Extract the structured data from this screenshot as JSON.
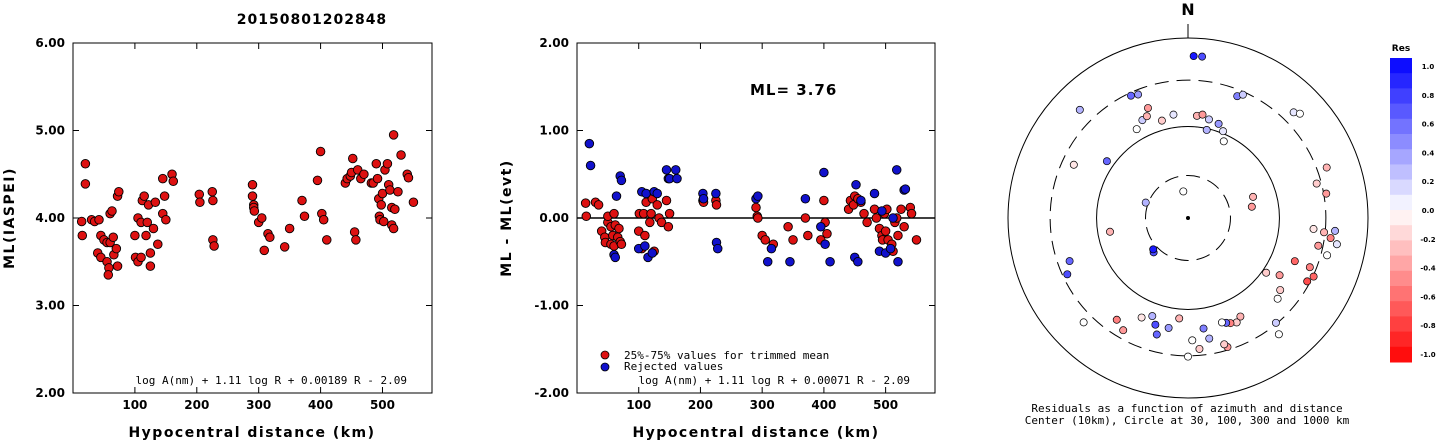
{
  "title": "20150801202848",
  "chart_data": [
    {
      "type": "scatter",
      "xlabel": "Hypocentral distance (km)",
      "ylabel": "ML(IASPEI)",
      "xlim": [
        0,
        580
      ],
      "ylim": [
        2.0,
        6.0
      ],
      "xticks": [
        "100",
        "200",
        "300",
        "400",
        "500"
      ],
      "yticks": [
        "2.00",
        "3.00",
        "4.00",
        "5.00",
        "6.00"
      ],
      "formula": "log A(nm) + 1.11 log R + 0.00189 R - 2.09",
      "colors": {
        "point": "#dd1111"
      },
      "points": [
        [
          14,
          3.96
        ],
        [
          15,
          3.8
        ],
        [
          20,
          4.62
        ],
        [
          20,
          4.39
        ],
        [
          30,
          3.98
        ],
        [
          35,
          3.96
        ],
        [
          42,
          3.98
        ],
        [
          45,
          3.8
        ],
        [
          40,
          3.6
        ],
        [
          45,
          3.55
        ],
        [
          50,
          3.75
        ],
        [
          55,
          3.72
        ],
        [
          55,
          3.5
        ],
        [
          58,
          3.43
        ],
        [
          57,
          3.35
        ],
        [
          60,
          3.72
        ],
        [
          60,
          4.05
        ],
        [
          63,
          4.08
        ],
        [
          65,
          3.78
        ],
        [
          66,
          3.58
        ],
        [
          70,
          3.65
        ],
        [
          72,
          3.45
        ],
        [
          72,
          4.25
        ],
        [
          74,
          4.3
        ],
        [
          100,
          3.8
        ],
        [
          101,
          3.55
        ],
        [
          105,
          3.5
        ],
        [
          105,
          4.0
        ],
        [
          110,
          3.55
        ],
        [
          110,
          3.95
        ],
        [
          112,
          4.2
        ],
        [
          115,
          4.25
        ],
        [
          118,
          3.8
        ],
        [
          120,
          3.95
        ],
        [
          122,
          4.15
        ],
        [
          125,
          3.6
        ],
        [
          125,
          3.45
        ],
        [
          130,
          3.88
        ],
        [
          133,
          4.18
        ],
        [
          137,
          3.7
        ],
        [
          145,
          4.45
        ],
        [
          145,
          4.05
        ],
        [
          148,
          4.25
        ],
        [
          150,
          3.98
        ],
        [
          160,
          4.5
        ],
        [
          162,
          4.42
        ],
        [
          204,
          4.27
        ],
        [
          205,
          4.18
        ],
        [
          225,
          4.3
        ],
        [
          226,
          4.2
        ],
        [
          226,
          3.75
        ],
        [
          228,
          3.68
        ],
        [
          290,
          4.38
        ],
        [
          290,
          4.25
        ],
        [
          292,
          4.15
        ],
        [
          292,
          4.12
        ],
        [
          293,
          4.08
        ],
        [
          300,
          3.95
        ],
        [
          305,
          4.0
        ],
        [
          309,
          3.63
        ],
        [
          315,
          3.82
        ],
        [
          318,
          3.78
        ],
        [
          342,
          3.67
        ],
        [
          350,
          3.88
        ],
        [
          370,
          4.2
        ],
        [
          374,
          4.02
        ],
        [
          395,
          4.43
        ],
        [
          400,
          4.76
        ],
        [
          402,
          4.05
        ],
        [
          405,
          3.98
        ],
        [
          410,
          3.75
        ],
        [
          440,
          4.4
        ],
        [
          443,
          4.45
        ],
        [
          448,
          4.48
        ],
        [
          450,
          4.52
        ],
        [
          452,
          4.68
        ],
        [
          455,
          3.84
        ],
        [
          457,
          3.75
        ],
        [
          460,
          4.55
        ],
        [
          465,
          4.45
        ],
        [
          470,
          4.5
        ],
        [
          482,
          4.4
        ],
        [
          485,
          4.4
        ],
        [
          490,
          4.62
        ],
        [
          492,
          4.45
        ],
        [
          494,
          4.22
        ],
        [
          495,
          4.02
        ],
        [
          496,
          3.98
        ],
        [
          498,
          4.15
        ],
        [
          500,
          4.28
        ],
        [
          502,
          3.96
        ],
        [
          504,
          4.55
        ],
        [
          508,
          4.62
        ],
        [
          510,
          4.38
        ],
        [
          512,
          4.32
        ],
        [
          515,
          4.12
        ],
        [
          515,
          3.92
        ],
        [
          518,
          3.88
        ],
        [
          518,
          4.95
        ],
        [
          520,
          4.1
        ],
        [
          525,
          4.3
        ],
        [
          530,
          4.72
        ],
        [
          540,
          4.5
        ],
        [
          542,
          4.46
        ],
        [
          550,
          4.18
        ]
      ]
    },
    {
      "type": "scatter",
      "xlabel": "Hypocentral distance (km)",
      "ylabel": "ML - ML(evt)",
      "xlim": [
        0,
        580
      ],
      "ylim": [
        -2.0,
        2.0
      ],
      "xticks": [
        "100",
        "200",
        "300",
        "400",
        "500"
      ],
      "yticks": [
        "-2.00",
        "-1.00",
        "0.00",
        "1.00",
        "2.00"
      ],
      "annotation": "ML= 3.76",
      "formula": "log A(nm) + 1.11 log R + 0.00071 R - 2.09",
      "legend": [
        "25%-75% values for trimmed mean",
        "Rejected values"
      ],
      "colors": {
        "trimmed": "#dd1111",
        "rejected": "#1111cc"
      },
      "trimmed": [
        [
          14,
          0.17
        ],
        [
          15,
          0.02
        ],
        [
          30,
          0.18
        ],
        [
          35,
          0.15
        ],
        [
          40,
          -0.15
        ],
        [
          45,
          -0.22
        ],
        [
          46,
          -0.28
        ],
        [
          50,
          -0.05
        ],
        [
          50,
          0.02
        ],
        [
          55,
          -0.1
        ],
        [
          55,
          -0.3
        ],
        [
          58,
          -0.2
        ],
        [
          60,
          -0.32
        ],
        [
          60,
          0.05
        ],
        [
          62,
          -0.08
        ],
        [
          66,
          -0.22
        ],
        [
          68,
          -0.12
        ],
        [
          70,
          -0.27
        ],
        [
          72,
          -0.3
        ],
        [
          100,
          -0.15
        ],
        [
          101,
          0.05
        ],
        [
          105,
          -0.35
        ],
        [
          108,
          0.05
        ],
        [
          110,
          -0.2
        ],
        [
          112,
          0.18
        ],
        [
          118,
          -0.05
        ],
        [
          120,
          0.05
        ],
        [
          122,
          0.22
        ],
        [
          125,
          -0.38
        ],
        [
          130,
          0.15
        ],
        [
          133,
          0.0
        ],
        [
          137,
          -0.05
        ],
        [
          145,
          0.2
        ],
        [
          148,
          -0.1
        ],
        [
          150,
          0.05
        ],
        [
          204,
          0.2
        ],
        [
          205,
          0.18
        ],
        [
          225,
          0.2
        ],
        [
          226,
          0.15
        ],
        [
          290,
          0.12
        ],
        [
          292,
          0.02
        ],
        [
          293,
          0.0
        ],
        [
          300,
          -0.2
        ],
        [
          305,
          -0.25
        ],
        [
          318,
          -0.3
        ],
        [
          342,
          -0.1
        ],
        [
          350,
          -0.25
        ],
        [
          370,
          0.0
        ],
        [
          374,
          -0.2
        ],
        [
          395,
          -0.25
        ],
        [
          400,
          0.2
        ],
        [
          402,
          -0.05
        ],
        [
          405,
          -0.18
        ],
        [
          440,
          0.1
        ],
        [
          443,
          0.2
        ],
        [
          448,
          0.15
        ],
        [
          450,
          0.25
        ],
        [
          455,
          0.22
        ],
        [
          460,
          0.18
        ],
        [
          465,
          0.05
        ],
        [
          470,
          -0.05
        ],
        [
          482,
          0.1
        ],
        [
          485,
          0.0
        ],
        [
          490,
          -0.12
        ],
        [
          494,
          -0.2
        ],
        [
          495,
          -0.25
        ],
        [
          498,
          0.05
        ],
        [
          500,
          -0.15
        ],
        [
          502,
          0.1
        ],
        [
          504,
          -0.25
        ],
        [
          510,
          -0.3
        ],
        [
          512,
          -0.38
        ],
        [
          515,
          -0.05
        ],
        [
          518,
          0.0
        ],
        [
          520,
          -0.2
        ],
        [
          525,
          0.1
        ],
        [
          530,
          -0.1
        ],
        [
          540,
          0.12
        ],
        [
          542,
          0.05
        ],
        [
          550,
          -0.25
        ]
      ],
      "rejected": [
        [
          20,
          0.85
        ],
        [
          22,
          0.6
        ],
        [
          60,
          -0.42
        ],
        [
          62,
          -0.45
        ],
        [
          64,
          0.25
        ],
        [
          70,
          0.48
        ],
        [
          72,
          0.43
        ],
        [
          100,
          -0.35
        ],
        [
          105,
          0.3
        ],
        [
          110,
          -0.32
        ],
        [
          112,
          0.28
        ],
        [
          115,
          -0.45
        ],
        [
          122,
          -0.4
        ],
        [
          125,
          0.3
        ],
        [
          130,
          0.28
        ],
        [
          145,
          0.55
        ],
        [
          148,
          0.45
        ],
        [
          150,
          0.45
        ],
        [
          160,
          0.55
        ],
        [
          162,
          0.45
        ],
        [
          204,
          0.28
        ],
        [
          205,
          0.22
        ],
        [
          225,
          0.28
        ],
        [
          226,
          -0.28
        ],
        [
          228,
          -0.35
        ],
        [
          290,
          0.22
        ],
        [
          293,
          0.25
        ],
        [
          309,
          -0.5
        ],
        [
          315,
          -0.35
        ],
        [
          345,
          -0.5
        ],
        [
          370,
          0.22
        ],
        [
          395,
          -0.1
        ],
        [
          400,
          0.52
        ],
        [
          402,
          -0.3
        ],
        [
          410,
          -0.5
        ],
        [
          450,
          -0.45
        ],
        [
          452,
          0.38
        ],
        [
          455,
          -0.5
        ],
        [
          460,
          0.2
        ],
        [
          482,
          0.28
        ],
        [
          490,
          -0.38
        ],
        [
          494,
          0.08
        ],
        [
          500,
          -0.4
        ],
        [
          508,
          -0.35
        ],
        [
          512,
          0.0
        ],
        [
          518,
          0.55
        ],
        [
          520,
          -0.5
        ],
        [
          530,
          0.32
        ],
        [
          532,
          0.33
        ]
      ]
    },
    {
      "type": "scatter",
      "subtype": "polar",
      "north_label": "N",
      "caption": [
        "Residuals as a function of azimuth and distance",
        "Center (10km), Circle at 30, 100, 300 and 1000 km"
      ],
      "rings": [
        {
          "label": "30",
          "style": "dashed"
        },
        {
          "label": "100",
          "style": "solid"
        },
        {
          "label": "300",
          "style": "dashed"
        },
        {
          "label": "1000",
          "style": "solid"
        }
      ],
      "colorbar": {
        "title": "Res",
        "ticks": [
          "1.0",
          "0.8",
          "0.6",
          "0.4",
          "0.2",
          "0.0",
          "-0.2",
          "-0.4",
          "-0.6",
          "-0.8",
          "-1.0"
        ],
        "positive_color": "#0000ee",
        "negative_color": "#ee0000"
      },
      "stations_az_r_res": [
        [
          2,
          0.9,
          0.9
        ],
        [
          5,
          0.9,
          0.7
        ],
        [
          -25,
          0.75,
          0.6
        ],
        [
          -22,
          0.74,
          0.4
        ],
        [
          22,
          0.73,
          0.5
        ],
        [
          24,
          0.75,
          0.2
        ],
        [
          45,
          0.83,
          0.1
        ],
        [
          47,
          0.85,
          0.0
        ],
        [
          -45,
          0.85,
          0.3
        ],
        [
          70,
          0.82,
          -0.3
        ],
        [
          75,
          0.74,
          -0.2
        ],
        [
          80,
          0.78,
          -0.4
        ],
        [
          95,
          0.7,
          -0.1
        ],
        [
          96,
          0.76,
          -0.3
        ],
        [
          98,
          0.8,
          -0.5
        ],
        [
          100,
          0.84,
          0.1
        ],
        [
          95,
          0.82,
          0.3
        ],
        [
          102,
          0.74,
          -0.4
        ],
        [
          105,
          0.8,
          0.0
        ],
        [
          112,
          0.73,
          -0.5
        ],
        [
          115,
          0.77,
          -0.6
        ],
        [
          118,
          0.75,
          -0.7
        ],
        [
          122,
          0.6,
          -0.4
        ],
        [
          128,
          0.65,
          -0.2
        ],
        [
          132,
          0.67,
          0.0
        ],
        [
          140,
          0.76,
          0.2
        ],
        [
          142,
          0.82,
          0.0
        ],
        [
          152,
          0.62,
          -0.3
        ],
        [
          155,
          0.64,
          -0.2
        ],
        [
          158,
          0.63,
          -0.5
        ],
        [
          160,
          0.62,
          0.6
        ],
        [
          162,
          0.61,
          0.0
        ],
        [
          163,
          0.75,
          -0.4
        ],
        [
          164,
          0.73,
          -0.2
        ],
        [
          170,
          0.68,
          0.3
        ],
        [
          172,
          0.62,
          0.5
        ],
        [
          175,
          0.73,
          -0.2
        ],
        [
          178,
          0.68,
          0.0
        ],
        [
          180,
          0.77,
          0.0
        ],
        [
          185,
          0.56,
          -0.3
        ],
        [
          190,
          0.62,
          0.4
        ],
        [
          195,
          0.67,
          0.6
        ],
        [
          197,
          0.62,
          0.7
        ],
        [
          200,
          0.58,
          0.3
        ],
        [
          205,
          0.61,
          -0.1
        ],
        [
          210,
          0.72,
          -0.4
        ],
        [
          215,
          0.69,
          -0.5
        ],
        [
          225,
          0.82,
          0.0
        ],
        [
          250,
          0.7,
          0.6
        ],
        [
          245,
          0.74,
          0.7
        ],
        [
          260,
          0.44,
          -0.3
        ],
        [
          295,
          0.7,
          -0.1
        ],
        [
          305,
          0.55,
          0.6
        ],
        [
          330,
          0.57,
          0.0
        ],
        [
          335,
          0.6,
          0.2
        ],
        [
          338,
          0.61,
          -0.3
        ],
        [
          340,
          0.65,
          -0.4
        ],
        [
          345,
          0.56,
          -0.2
        ],
        [
          352,
          0.58,
          0.1
        ],
        [
          5,
          0.57,
          -0.3
        ],
        [
          8,
          0.58,
          -0.4
        ],
        [
          12,
          0.56,
          0.2
        ],
        [
          18,
          0.55,
          0.4
        ],
        [
          22,
          0.52,
          0.1
        ],
        [
          12,
          0.5,
          0.3
        ],
        [
          25,
          0.47,
          0.0
        ],
        [
          72,
          0.38,
          -0.3
        ],
        [
          80,
          0.36,
          -0.4
        ],
        [
          112,
          0.64,
          -0.6
        ],
        [
          125,
          0.53,
          -0.2
        ],
        [
          225,
          0.27,
          0.7
        ],
        [
          228,
          0.26,
          0.9
        ],
        [
          290,
          0.25,
          0.3
        ],
        [
          -10,
          0.15,
          0.0
        ]
      ]
    }
  ]
}
